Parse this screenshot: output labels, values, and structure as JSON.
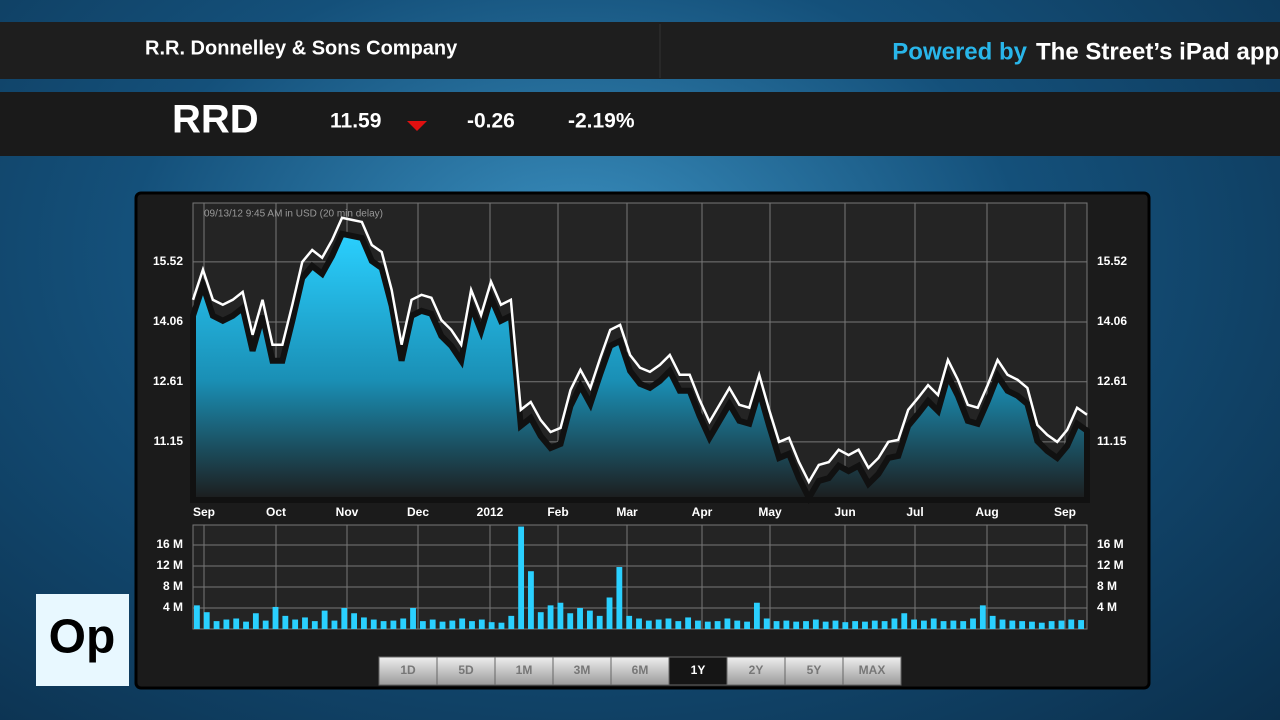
{
  "header": {
    "company": "R.R. Donnelley & Sons Company",
    "powered_by": "Powered by",
    "app": "The Street’s iPad app",
    "ticker": "RRD",
    "price": "11.59",
    "change": "-0.26",
    "change_pct": "-2.19%"
  },
  "logo": "Op",
  "range_buttons": {
    "labels": [
      "1D",
      "5D",
      "1M",
      "3M",
      "6M",
      "1Y",
      "2Y",
      "5Y",
      "MAX"
    ],
    "selected": 5
  },
  "chart_data": [
    {
      "type": "line",
      "subtitle": "09/13/12  9:45 AM in USD (20 min delay)",
      "x_labels": [
        "Sep",
        "Oct",
        "Nov",
        "Dec",
        "2012",
        "Feb",
        "Mar",
        "Apr",
        "May",
        "Jun",
        "Jul",
        "Aug",
        "Sep"
      ],
      "series": [
        {
          "name": "RRD",
          "color": "#ffffff",
          "area_color": "#2ad0ff",
          "values": [
            14.6,
            15.33,
            14.6,
            14.48,
            14.6,
            14.79,
            13.75,
            14.6,
            13.51,
            13.51,
            14.48,
            15.52,
            15.81,
            15.62,
            16.05,
            16.59,
            16.54,
            16.49,
            15.93,
            15.76,
            14.84,
            13.51,
            14.6,
            14.72,
            14.65,
            14.11,
            13.87,
            13.51,
            14.84,
            14.23,
            15.04,
            14.48,
            14.6,
            11.93,
            12.12,
            11.68,
            11.39,
            11.49,
            12.41,
            12.9,
            12.46,
            13.19,
            13.87,
            13.99,
            13.26,
            12.95,
            12.85,
            13.02,
            13.26,
            12.78,
            12.78,
            12.17,
            11.64,
            12.05,
            12.46,
            12.05,
            11.98,
            12.78,
            11.93,
            11.15,
            11.25,
            10.66,
            10.18,
            10.59,
            10.66,
            10.96,
            10.83,
            10.96,
            10.52,
            10.76,
            11.15,
            11.2,
            11.93,
            12.22,
            12.53,
            12.29,
            13.14,
            12.66,
            12.05,
            11.98,
            12.53,
            13.14,
            12.78,
            12.66,
            12.46,
            11.56,
            11.32,
            11.15,
            11.44,
            11.98,
            11.81
          ]
        }
      ],
      "ylim": [
        9.74,
        16.95
      ],
      "yticks": [
        11.15,
        12.61,
        14.06,
        15.52
      ],
      "grid": true
    },
    {
      "type": "bar",
      "color": "#2ad0ff",
      "values": [
        4.5,
        3.2,
        1.5,
        1.8,
        2.0,
        1.4,
        3.0,
        1.6,
        4.2,
        2.5,
        1.8,
        2.2,
        1.5,
        3.5,
        1.6,
        4.0,
        3.0,
        2.2,
        1.8,
        1.5,
        1.6,
        2.0,
        4.0,
        1.5,
        1.8,
        1.4,
        1.6,
        2.0,
        1.5,
        1.8,
        1.3,
        1.2,
        2.5,
        19.5,
        11.0,
        3.2,
        4.5,
        5.0,
        3.0,
        4.0,
        3.5,
        2.5,
        6.0,
        11.8,
        2.5,
        2.0,
        1.6,
        1.8,
        2.0,
        1.5,
        2.2,
        1.6,
        1.4,
        1.5,
        2.0,
        1.6,
        1.4,
        5.0,
        2.0,
        1.5,
        1.6,
        1.4,
        1.5,
        1.8,
        1.4,
        1.6,
        1.3,
        1.5,
        1.4,
        1.6,
        1.5,
        2.0,
        3.0,
        1.8,
        1.6,
        2.0,
        1.5,
        1.6,
        1.5,
        2.0,
        4.5,
        2.5,
        1.8,
        1.6,
        1.5,
        1.4,
        1.2,
        1.5,
        1.6,
        1.8,
        1.7
      ],
      "ylim": [
        0,
        19.8
      ],
      "yticks": [
        {
          "value": 4,
          "label": "4 M"
        },
        {
          "value": 8,
          "label": "8 M"
        },
        {
          "value": 12,
          "label": "12 M"
        },
        {
          "value": 16,
          "label": "16 M"
        }
      ],
      "grid": true
    }
  ]
}
